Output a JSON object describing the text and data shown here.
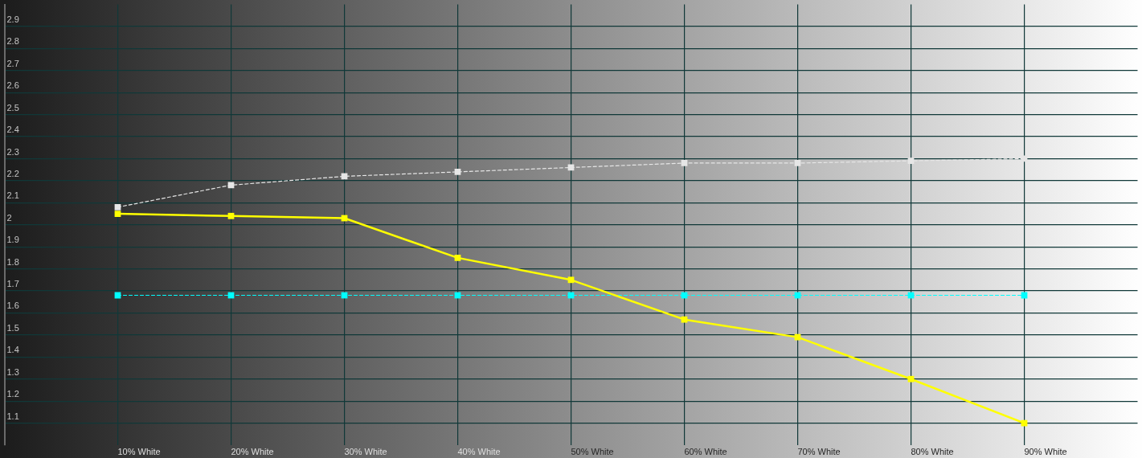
{
  "chart_data": {
    "type": "line",
    "categories": [
      "10% White",
      "20% White",
      "30% White",
      "40% White",
      "50% White",
      "60% White",
      "70% White",
      "80% White",
      "90% White"
    ],
    "series": [
      {
        "color": "#ffff00",
        "line_style": "solid",
        "values": [
          2.05,
          2.04,
          2.03,
          1.85,
          1.75,
          1.57,
          1.49,
          1.3,
          1.1
        ]
      },
      {
        "color": "#e6e6e6",
        "line_style": "dashed",
        "values": [
          2.08,
          2.18,
          2.22,
          2.24,
          2.26,
          2.28,
          2.28,
          2.29,
          2.3
        ]
      },
      {
        "color": "#00ffff",
        "line_style": "dashed",
        "values": [
          1.68,
          1.68,
          1.68,
          1.68,
          1.68,
          1.68,
          1.68,
          1.68,
          1.68
        ]
      }
    ],
    "ylim": [
      1,
      3
    ],
    "yticks": [
      1.1,
      1.2,
      1.3,
      1.4,
      1.5,
      1.6,
      1.7,
      1.8,
      1.9,
      2,
      2.1,
      2.2,
      2.3,
      2.4,
      2.5,
      2.6,
      2.7,
      2.8,
      2.9
    ],
    "grid": true,
    "marker": "square"
  }
}
